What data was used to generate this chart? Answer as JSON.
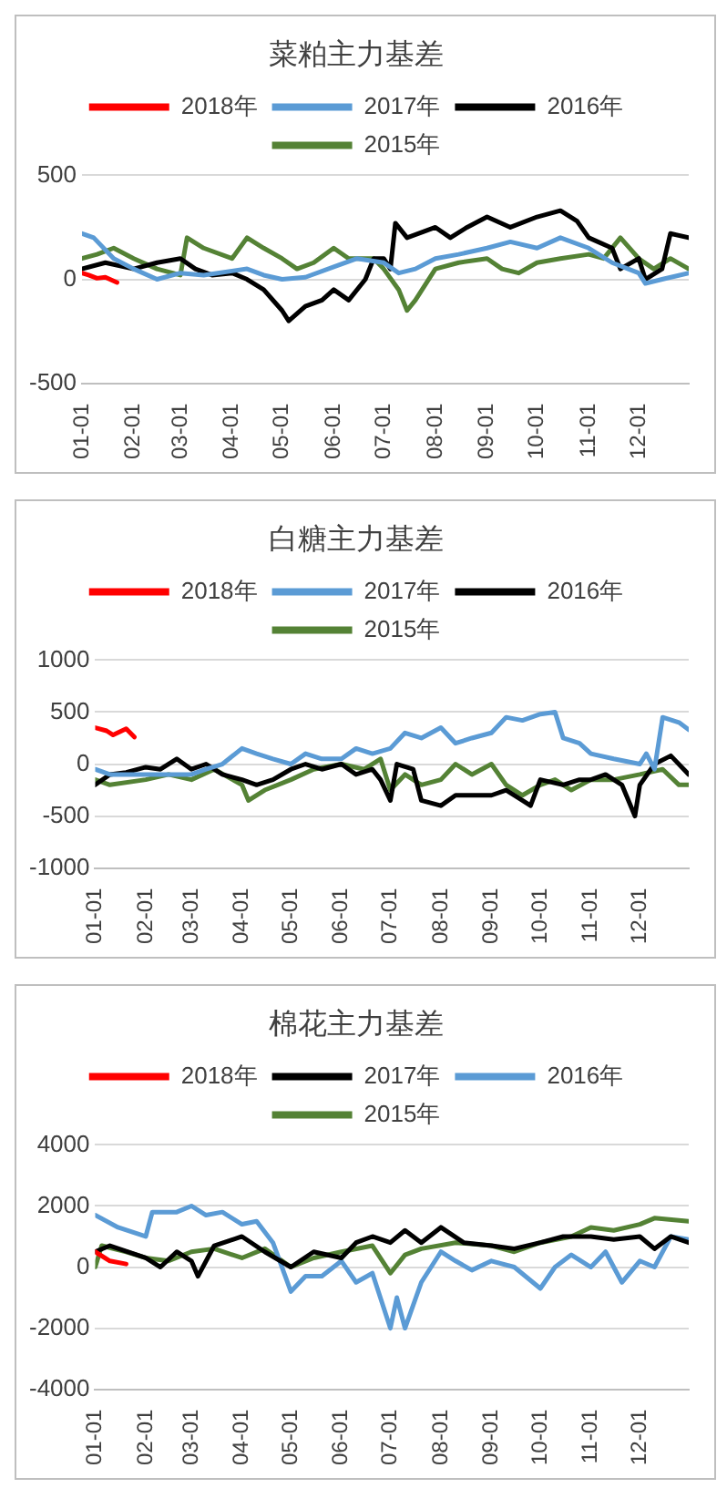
{
  "chart_data": [
    {
      "type": "line",
      "title": "菜粕主力基差",
      "legend": "top",
      "grid": "y",
      "marker": "none",
      "line_style": "solid",
      "xlim": [
        "--01-01",
        "--12-31"
      ],
      "xticks": [
        {
          "value": "--01-01",
          "label": "01-01"
        },
        {
          "value": "--02-01",
          "label": "02-01"
        },
        {
          "value": "--03-01",
          "label": "03-01"
        },
        {
          "value": "--04-01",
          "label": "04-01"
        },
        {
          "value": "--05-01",
          "label": "05-01"
        },
        {
          "value": "--06-01",
          "label": "06-01"
        },
        {
          "value": "--07-01",
          "label": "07-01"
        },
        {
          "value": "--08-01",
          "label": "08-01"
        },
        {
          "value": "--09-01",
          "label": "09-01"
        },
        {
          "value": "--10-01",
          "label": "10-01"
        },
        {
          "value": "--11-01",
          "label": "11-01"
        },
        {
          "value": "--12-01",
          "label": "12-01"
        }
      ],
      "ylim": [
        -500,
        500
      ],
      "yticks": [
        -500,
        0,
        500
      ],
      "series": [
        {
          "name": "2018年",
          "color": "#ff0000",
          "x": [
            "--01-01",
            "--01-05",
            "--01-10",
            "--01-15",
            "--01-22"
          ],
          "values": [
            30,
            20,
            5,
            10,
            -15
          ]
        },
        {
          "name": "2017年",
          "color": "#5b9bd5",
          "x": [
            "--01-01",
            "--01-08",
            "--01-20",
            "--02-01",
            "--02-15",
            "--03-01",
            "--03-15",
            "--04-01",
            "--04-10",
            "--04-20",
            "--05-01",
            "--05-15",
            "--06-01",
            "--06-15",
            "--07-01",
            "--07-10",
            "--07-20",
            "--08-01",
            "--08-15",
            "--09-01",
            "--09-15",
            "--10-01",
            "--10-15",
            "--11-01",
            "--11-15",
            "--12-01",
            "--12-05",
            "--12-15",
            "--12-31"
          ],
          "values": [
            220,
            200,
            100,
            50,
            0,
            30,
            20,
            40,
            50,
            20,
            0,
            10,
            60,
            100,
            80,
            30,
            50,
            100,
            120,
            150,
            180,
            150,
            200,
            150,
            80,
            30,
            -20,
            0,
            30
          ]
        },
        {
          "name": "2016年",
          "color": "#000000",
          "x": [
            "--01-01",
            "--01-15",
            "--02-01",
            "--02-15",
            "--03-01",
            "--03-10",
            "--03-20",
            "--04-01",
            "--04-10",
            "--04-20",
            "--05-01",
            "--05-05",
            "--05-15",
            "--05-25",
            "--06-01",
            "--06-10",
            "--06-20",
            "--06-25",
            "--07-01",
            "--07-05",
            "--07-08",
            "--07-15",
            "--08-01",
            "--08-10",
            "--08-20",
            "--09-01",
            "--09-15",
            "--10-01",
            "--10-15",
            "--10-25",
            "--11-01",
            "--11-15",
            "--11-20",
            "--12-01",
            "--12-05",
            "--12-15",
            "--12-20",
            "--12-31"
          ],
          "values": [
            50,
            80,
            50,
            80,
            100,
            50,
            20,
            30,
            0,
            -50,
            -150,
            -200,
            -130,
            -100,
            -50,
            -100,
            0,
            100,
            100,
            50,
            270,
            200,
            250,
            200,
            250,
            300,
            250,
            300,
            330,
            280,
            200,
            150,
            50,
            100,
            0,
            50,
            220,
            200
          ]
        },
        {
          "name": "2015年",
          "color": "#548235",
          "x": [
            "--01-01",
            "--01-10",
            "--01-20",
            "--02-01",
            "--02-15",
            "--03-01",
            "--03-05",
            "--03-15",
            "--04-01",
            "--04-10",
            "--04-20",
            "--05-01",
            "--05-10",
            "--05-20",
            "--06-01",
            "--06-10",
            "--06-25",
            "--07-01",
            "--07-10",
            "--07-15",
            "--07-20",
            "--08-01",
            "--08-15",
            "--09-01",
            "--09-10",
            "--09-20",
            "--10-01",
            "--10-15",
            "--11-01",
            "--11-10",
            "--11-20",
            "--12-01",
            "--12-10",
            "--12-20",
            "--12-31"
          ],
          "values": [
            100,
            120,
            150,
            100,
            50,
            20,
            200,
            150,
            100,
            200,
            150,
            100,
            50,
            80,
            150,
            100,
            100,
            50,
            -50,
            -150,
            -100,
            50,
            80,
            100,
            50,
            30,
            80,
            100,
            120,
            100,
            200,
            100,
            50,
            100,
            50
          ]
        }
      ]
    },
    {
      "type": "line",
      "title": "白糖主力基差",
      "legend": "top",
      "grid": "y",
      "marker": "none",
      "line_style": "solid",
      "xlim": [
        "--01-01",
        "--12-31"
      ],
      "xticks": [
        {
          "value": "--01-01",
          "label": "01-01"
        },
        {
          "value": "--02-01",
          "label": "02-01"
        },
        {
          "value": "--03-01",
          "label": "03-01"
        },
        {
          "value": "--04-01",
          "label": "04-01"
        },
        {
          "value": "--05-01",
          "label": "05-01"
        },
        {
          "value": "--06-01",
          "label": "06-01"
        },
        {
          "value": "--07-01",
          "label": "07-01"
        },
        {
          "value": "--08-01",
          "label": "08-01"
        },
        {
          "value": "--09-01",
          "label": "09-01"
        },
        {
          "value": "--10-01",
          "label": "10-01"
        },
        {
          "value": "--11-01",
          "label": "11-01"
        },
        {
          "value": "--12-01",
          "label": "12-01"
        }
      ],
      "ylim": [
        -1000,
        1000
      ],
      "yticks": [
        -1000,
        -500,
        0,
        500,
        1000
      ],
      "series": [
        {
          "name": "2018年",
          "color": "#ff0000",
          "x": [
            "--01-01",
            "--01-08",
            "--01-12",
            "--01-20",
            "--01-25"
          ],
          "values": [
            350,
            320,
            280,
            340,
            260
          ]
        },
        {
          "name": "2017年",
          "color": "#5b9bd5",
          "x": [
            "--01-01",
            "--01-10",
            "--02-01",
            "--03-01",
            "--03-10",
            "--03-20",
            "--04-01",
            "--04-10",
            "--04-20",
            "--05-01",
            "--05-10",
            "--05-20",
            "--06-01",
            "--06-10",
            "--06-20",
            "--07-01",
            "--07-10",
            "--07-20",
            "--08-01",
            "--08-10",
            "--08-20",
            "--09-01",
            "--09-10",
            "--09-20",
            "--10-01",
            "--10-10",
            "--10-15",
            "--10-25",
            "--11-01",
            "--11-15",
            "--12-01",
            "--12-05",
            "--12-10",
            "--12-15",
            "--12-25",
            "--12-31"
          ],
          "values": [
            -50,
            -100,
            -100,
            -100,
            -50,
            0,
            150,
            100,
            50,
            0,
            100,
            50,
            50,
            150,
            100,
            150,
            300,
            250,
            350,
            200,
            250,
            300,
            450,
            420,
            480,
            500,
            250,
            200,
            100,
            50,
            0,
            100,
            -50,
            450,
            400,
            330
          ]
        },
        {
          "name": "2016年",
          "color": "#000000",
          "x": [
            "--01-01",
            "--01-10",
            "--01-20",
            "--02-01",
            "--02-10",
            "--02-20",
            "--03-01",
            "--03-10",
            "--03-20",
            "--04-01",
            "--04-10",
            "--04-20",
            "--05-01",
            "--05-10",
            "--05-20",
            "--06-01",
            "--06-10",
            "--06-20",
            "--06-25",
            "--07-01",
            "--07-05",
            "--07-15",
            "--07-20",
            "--08-01",
            "--08-10",
            "--08-20",
            "--09-01",
            "--09-10",
            "--09-20",
            "--09-25",
            "--10-01",
            "--10-15",
            "--10-25",
            "--11-01",
            "--11-10",
            "--11-20",
            "--11-28",
            "--12-01",
            "--12-10",
            "--12-20",
            "--12-31"
          ],
          "values": [
            -200,
            -100,
            -80,
            -30,
            -50,
            50,
            -50,
            0,
            -100,
            -150,
            -200,
            -150,
            -50,
            0,
            -50,
            0,
            -100,
            -50,
            -150,
            -350,
            0,
            -50,
            -350,
            -400,
            -300,
            -300,
            -300,
            -250,
            -350,
            -400,
            -150,
            -200,
            -150,
            -150,
            -100,
            -200,
            -500,
            -200,
            0,
            80,
            -100
          ]
        },
        {
          "name": "2015年",
          "color": "#548235",
          "x": [
            "--01-01",
            "--01-10",
            "--02-01",
            "--02-15",
            "--03-01",
            "--03-15",
            "--04-01",
            "--04-05",
            "--04-15",
            "--05-01",
            "--05-15",
            "--06-01",
            "--06-15",
            "--06-25",
            "--07-01",
            "--07-10",
            "--07-20",
            "--08-01",
            "--08-10",
            "--08-20",
            "--09-01",
            "--09-10",
            "--09-20",
            "--10-01",
            "--10-10",
            "--10-20",
            "--11-01",
            "--11-15",
            "--12-01",
            "--12-15",
            "--12-25",
            "--12-31"
          ],
          "values": [
            -150,
            -200,
            -150,
            -100,
            -150,
            -50,
            -200,
            -350,
            -250,
            -150,
            -50,
            0,
            -50,
            50,
            -250,
            -100,
            -200,
            -150,
            0,
            -100,
            0,
            -200,
            -300,
            -200,
            -150,
            -250,
            -150,
            -150,
            -100,
            -50,
            -200,
            -200
          ]
        }
      ]
    },
    {
      "type": "line",
      "title": "棉花主力基差",
      "legend": "top",
      "grid": "y",
      "marker": "none",
      "line_style": "solid",
      "xlim": [
        "--01-01",
        "--12-31"
      ],
      "xticks": [
        {
          "value": "--01-01",
          "label": "01-01"
        },
        {
          "value": "--02-01",
          "label": "02-01"
        },
        {
          "value": "--03-01",
          "label": "03-01"
        },
        {
          "value": "--04-01",
          "label": "04-01"
        },
        {
          "value": "--05-01",
          "label": "05-01"
        },
        {
          "value": "--06-01",
          "label": "06-01"
        },
        {
          "value": "--07-01",
          "label": "07-01"
        },
        {
          "value": "--08-01",
          "label": "08-01"
        },
        {
          "value": "--09-01",
          "label": "09-01"
        },
        {
          "value": "--10-01",
          "label": "10-01"
        },
        {
          "value": "--11-01",
          "label": "11-01"
        },
        {
          "value": "--12-01",
          "label": "12-01"
        }
      ],
      "ylim": [
        -4000,
        4000
      ],
      "yticks": [
        -4000,
        -2000,
        0,
        2000,
        4000
      ],
      "series": [
        {
          "name": "2018年",
          "color": "#ff0000",
          "x": [
            "--01-01",
            "--01-10",
            "--01-20"
          ],
          "values": [
            500,
            200,
            100
          ]
        },
        {
          "name": "2017年",
          "color": "#000000",
          "x": [
            "--01-01",
            "--01-10",
            "--02-01",
            "--02-10",
            "--02-20",
            "--03-01",
            "--03-05",
            "--03-15",
            "--04-01",
            "--04-15",
            "--05-01",
            "--05-15",
            "--06-01",
            "--06-10",
            "--06-20",
            "--07-01",
            "--07-10",
            "--07-20",
            "--08-01",
            "--08-15",
            "--09-01",
            "--09-15",
            "--10-01",
            "--10-15",
            "--11-01",
            "--11-15",
            "--12-01",
            "--12-10",
            "--12-20",
            "--12-31"
          ],
          "values": [
            500,
            700,
            300,
            0,
            500,
            200,
            -300,
            700,
            1000,
            500,
            0,
            500,
            300,
            800,
            1000,
            800,
            1200,
            800,
            1300,
            800,
            700,
            600,
            800,
            1000,
            1000,
            900,
            1000,
            600,
            1000,
            800
          ]
        },
        {
          "name": "2016年",
          "color": "#5b9bd5",
          "x": [
            "--01-01",
            "--01-15",
            "--02-01",
            "--02-05",
            "--02-20",
            "--03-01",
            "--03-10",
            "--03-20",
            "--04-01",
            "--04-10",
            "--04-20",
            "--05-01",
            "--05-10",
            "--05-20",
            "--06-01",
            "--06-10",
            "--06-20",
            "--07-01",
            "--07-05",
            "--07-10",
            "--07-20",
            "--08-01",
            "--08-10",
            "--08-20",
            "--09-01",
            "--09-15",
            "--10-01",
            "--10-10",
            "--10-20",
            "--11-01",
            "--11-10",
            "--11-20",
            "--12-01",
            "--12-10",
            "--12-20",
            "--12-31"
          ],
          "values": [
            1700,
            1300,
            1000,
            1800,
            1800,
            2000,
            1700,
            1800,
            1400,
            1500,
            800,
            -800,
            -300,
            -300,
            200,
            -500,
            -200,
            -2000,
            -1000,
            -2000,
            -500,
            500,
            200,
            -100,
            200,
            0,
            -700,
            0,
            400,
            0,
            500,
            -500,
            200,
            0,
            1000,
            900
          ]
        },
        {
          "name": "2015年",
          "color": "#548235",
          "x": [
            "--01-01",
            "--01-05",
            "--01-20",
            "--02-01",
            "--02-15",
            "--03-01",
            "--03-15",
            "--04-01",
            "--04-15",
            "--05-01",
            "--05-15",
            "--06-01",
            "--06-20",
            "--07-01",
            "--07-10",
            "--07-20",
            "--08-10",
            "--09-01",
            "--09-15",
            "--10-01",
            "--10-20",
            "--11-01",
            "--11-15",
            "--12-01",
            "--12-10",
            "--12-31"
          ],
          "values": [
            0,
            700,
            500,
            300,
            200,
            500,
            600,
            300,
            600,
            0,
            300,
            500,
            700,
            -200,
            400,
            600,
            800,
            700,
            500,
            800,
            1000,
            1300,
            1200,
            1400,
            1600,
            1500
          ]
        }
      ]
    }
  ]
}
